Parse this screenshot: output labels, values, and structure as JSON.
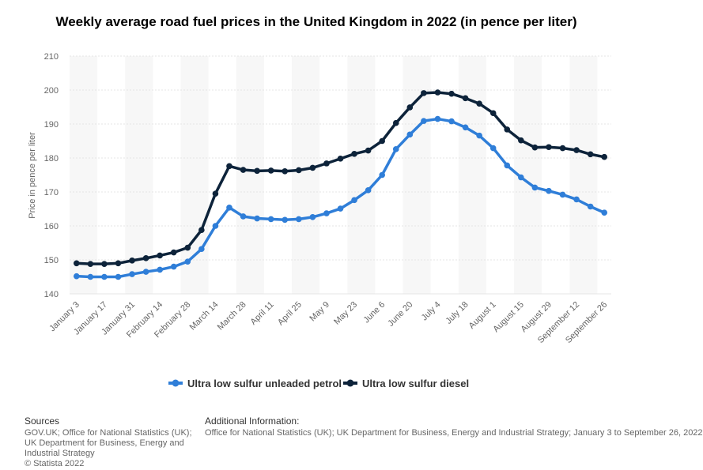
{
  "chart_data": {
    "type": "line",
    "title": "Weekly average road fuel prices in the United Kingdom in 2022 (in pence per liter)",
    "xlabel": "",
    "ylabel": "Price in pence per liter",
    "ylim": [
      140,
      210
    ],
    "yticks": [
      140,
      150,
      160,
      170,
      180,
      190,
      200,
      210
    ],
    "grid": true,
    "legend_position": "bottom",
    "x": [
      "January 3",
      "January 10",
      "January 17",
      "January 24",
      "January 31",
      "February 7",
      "February 14",
      "February 21",
      "February 28",
      "March 7",
      "March 14",
      "March 21",
      "March 28",
      "April 4",
      "April 11",
      "April 18",
      "April 25",
      "May 2",
      "May 9",
      "May 16",
      "May 23",
      "May 30",
      "June 6",
      "June 13",
      "June 20",
      "June 27",
      "July 4",
      "July 11",
      "July 18",
      "July 25",
      "August 1",
      "August 8",
      "August 15",
      "August 22",
      "August 29",
      "September 5",
      "September 12",
      "September 19",
      "September 26"
    ],
    "x_tick_labels": [
      "January 3",
      "January 17",
      "January 31",
      "February 14",
      "February 28",
      "March 14",
      "March 28",
      "April 11",
      "April 25",
      "May 9",
      "May 23",
      "June 6",
      "June 20",
      "July 4",
      "July 18",
      "August 1",
      "August 15",
      "August 29",
      "September 12",
      "September 26"
    ],
    "series": [
      {
        "name": "Ultra low sulfur unleaded petrol",
        "color": "#2f7ed8",
        "values": [
          145.2,
          145.0,
          145.0,
          145.0,
          145.8,
          146.5,
          147.1,
          148.0,
          149.5,
          153.2,
          160.0,
          165.4,
          162.8,
          162.2,
          162.0,
          161.8,
          162.0,
          162.6,
          163.7,
          165.1,
          167.6,
          170.5,
          175.0,
          182.6,
          186.9,
          190.9,
          191.5,
          190.8,
          189.0,
          186.6,
          182.9,
          177.8,
          174.3,
          171.3,
          170.3,
          169.2,
          167.8,
          165.7,
          163.9
        ]
      },
      {
        "name": "Ultra low sulfur diesel",
        "color": "#0d233a",
        "values": [
          149.0,
          148.8,
          148.8,
          149.0,
          149.8,
          150.5,
          151.3,
          152.2,
          153.6,
          158.8,
          169.5,
          177.6,
          176.5,
          176.2,
          176.3,
          176.1,
          176.4,
          177.1,
          178.4,
          179.8,
          181.2,
          182.2,
          185.0,
          190.3,
          194.9,
          199.1,
          199.3,
          198.9,
          197.6,
          196.0,
          193.2,
          188.4,
          185.2,
          183.1,
          183.2,
          182.9,
          182.3,
          181.1,
          180.3
        ]
      }
    ]
  },
  "footer": {
    "sources_header": "Sources",
    "sources_text": "GOV.UK; Office for National Statistics (UK); UK Department for Business, Energy and Industrial Strategy",
    "copyright": "© Statista 2022",
    "addinfo_header": "Additional Information:",
    "addinfo_text": "Office for National Statistics (UK); UK Department for Business, Energy and Industrial Strategy; January 3 to September 26, 2022"
  }
}
